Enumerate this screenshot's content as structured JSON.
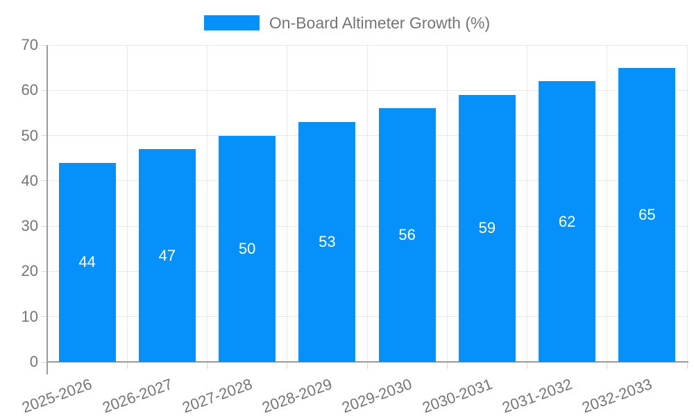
{
  "chart_data": {
    "type": "bar",
    "title": "",
    "legend": {
      "label": "On-Board Altimeter Growth (%)",
      "position": "top"
    },
    "categories": [
      "2025-2026",
      "2026-2027",
      "2027-2028",
      "2028-2029",
      "2029-2030",
      "2030-2031",
      "2031-2032",
      "2032-2033"
    ],
    "values": [
      44,
      47,
      50,
      53,
      56,
      59,
      62,
      65
    ],
    "xlabel": "",
    "ylabel": "",
    "ylim": [
      0,
      70
    ],
    "y_tick_step": 10,
    "grid": true,
    "bar_value_labels_shown": true,
    "colors": {
      "bar": "#0590fa",
      "axis_text": "#757575",
      "bar_label": "#ffffff",
      "gridline": "#e7e7e7",
      "tick": "#d9d9d9",
      "axis_line": "#9a9a9a",
      "background": "#ffffff"
    }
  }
}
